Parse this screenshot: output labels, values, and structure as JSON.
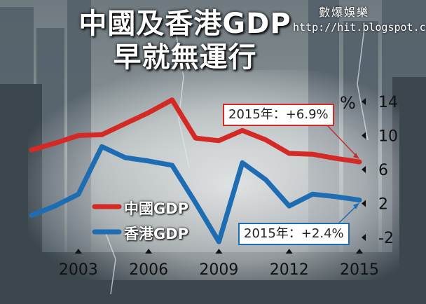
{
  "title_line1": "中國及香港GDP",
  "title_line2": "早就無運行",
  "watermark": {
    "name": "數爆娛樂",
    "url": "http://hit.blogspot.com"
  },
  "colors": {
    "china": "#d42a26",
    "hk": "#1e6db3",
    "text_light": "#ffffff",
    "text_dark": "#1a1a1a"
  },
  "chart_data": {
    "type": "line",
    "ylabel": "%",
    "ylim": [
      -4,
      15
    ],
    "yticks": [
      -2,
      2,
      6,
      10,
      14
    ],
    "xticks": [
      "2003",
      "2006",
      "2009",
      "2012",
      "2015"
    ],
    "xlim": [
      2001,
      2015
    ],
    "grid": false,
    "legend_placement": "center-left",
    "series": [
      {
        "name": "中國GDP",
        "color": "#d42a26",
        "x": [
          2001,
          2002,
          2003,
          2004,
          2005,
          2006,
          2007,
          2008,
          2009,
          2010,
          2011,
          2012,
          2013,
          2014,
          2015
        ],
        "values": [
          8.3,
          9.1,
          10.0,
          10.1,
          11.4,
          12.7,
          14.2,
          9.7,
          9.4,
          10.6,
          9.5,
          7.9,
          7.8,
          7.3,
          6.9
        ]
      },
      {
        "name": "香港GDP",
        "color": "#1e6db3",
        "x": [
          2001,
          2002,
          2003,
          2004,
          2005,
          2006,
          2007,
          2008,
          2009,
          2010,
          2011,
          2012,
          2013,
          2014,
          2015
        ],
        "values": [
          0.6,
          1.7,
          3.1,
          8.7,
          7.4,
          7.0,
          6.5,
          2.1,
          -2.5,
          6.8,
          4.8,
          1.7,
          3.1,
          2.8,
          2.4
        ]
      }
    ],
    "annotations": [
      {
        "series": "中國GDP",
        "text": "2015年：+6.9%"
      },
      {
        "series": "香港GDP",
        "text": "2015年：+2.4%"
      }
    ]
  }
}
